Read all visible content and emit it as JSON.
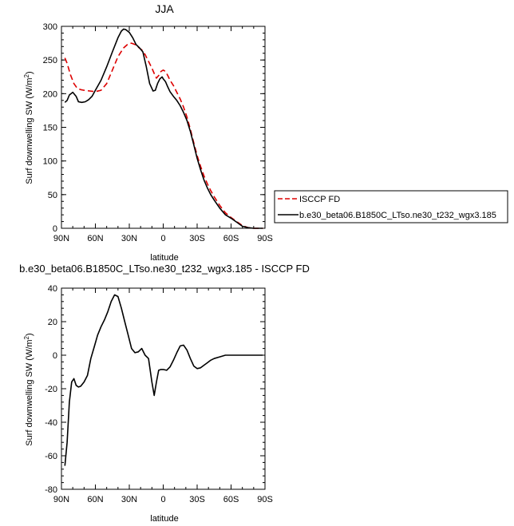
{
  "chart_data": [
    {
      "type": "line",
      "title": "JJA",
      "xlabel": "latitude",
      "ylabel": "Surf downwelling SW (W/m",
      "ylabel_sup": "2",
      "ylabel_end": ")",
      "xlim": [
        90,
        -90
      ],
      "ylim": [
        0,
        300
      ],
      "x_ticks": [
        90,
        60,
        30,
        0,
        -30,
        -60,
        -90
      ],
      "x_tick_labels": [
        "90N",
        "60N",
        "30N",
        "0",
        "30S",
        "60S",
        "90S"
      ],
      "y_ticks": [
        0,
        50,
        100,
        150,
        200,
        250,
        300
      ],
      "y_tick_labels": [
        "0",
        "50",
        "100",
        "150",
        "200",
        "250",
        "300"
      ],
      "legend_position": "right",
      "series": [
        {
          "name": "ISCCP FD",
          "color": "#dd0000",
          "dashed": true,
          "x": [
            87,
            85,
            82,
            79,
            76,
            73,
            70,
            65,
            60,
            55,
            50,
            45,
            40,
            35,
            31,
            28,
            25,
            22,
            19,
            16,
            13,
            10,
            8,
            6,
            4,
            2,
            0,
            -2,
            -4,
            -6,
            -9,
            -12,
            -15,
            -18,
            -21,
            -24,
            -27,
            -30,
            -33,
            -36,
            -39,
            -42,
            -45,
            -50,
            -55,
            -60,
            -65,
            -70,
            -75,
            -80,
            -85,
            -88
          ],
          "y": [
            253,
            245,
            228,
            215,
            208,
            206,
            205,
            204,
            203,
            205,
            215,
            235,
            255,
            268,
            274,
            275,
            273,
            269,
            265,
            258,
            248,
            238,
            230,
            223,
            227,
            233,
            235,
            233,
            227,
            220,
            212,
            202,
            192,
            180,
            165,
            147,
            127,
            108,
            92,
            78,
            66,
            56,
            47,
            34,
            23,
            16,
            10,
            4,
            1,
            0,
            0,
            0
          ]
        },
        {
          "name": "b.e30_beta06.B1850C_LTso.ne30_t232_wgx3.185",
          "color": "#000000",
          "dashed": false,
          "x": [
            87,
            85,
            83,
            80,
            77,
            75,
            72,
            69,
            66,
            63,
            60,
            55,
            50,
            45,
            40,
            37,
            35,
            33,
            30,
            27,
            24,
            21,
            18,
            15,
            12,
            9,
            7,
            5,
            3,
            1,
            0,
            -2,
            -4,
            -6,
            -9,
            -12,
            -15,
            -18,
            -21,
            -24,
            -27,
            -30,
            -33,
            -36,
            -39,
            -42,
            -45,
            -50,
            -55,
            -60,
            -65,
            -70,
            -75,
            -80,
            -85,
            -88
          ],
          "y": [
            187,
            190,
            198,
            202,
            196,
            188,
            187,
            188,
            191,
            196,
            205,
            220,
            240,
            262,
            283,
            293,
            296,
            295,
            291,
            283,
            273,
            268,
            262,
            240,
            215,
            204,
            205,
            215,
            222,
            225,
            222,
            218,
            210,
            203,
            196,
            190,
            182,
            172,
            160,
            144,
            124,
            104,
            87,
            72,
            60,
            50,
            42,
            30,
            20,
            15,
            9,
            3,
            1,
            0,
            0,
            0
          ]
        }
      ]
    },
    {
      "type": "line",
      "title": "b.e30_beta06.B1850C_LTso.ne30_t232_wgx3.185 - ISCCP FD",
      "xlabel": "latitude",
      "ylabel": "Surf downwelling SW (W/m",
      "ylabel_sup": "2",
      "ylabel_end": ")",
      "xlim": [
        90,
        -90
      ],
      "ylim": [
        -80,
        40
      ],
      "x_ticks": [
        90,
        60,
        30,
        0,
        -30,
        -60,
        -90
      ],
      "x_tick_labels": [
        "90N",
        "60N",
        "30N",
        "0",
        "30S",
        "60S",
        "90S"
      ],
      "y_ticks": [
        -80,
        -60,
        -40,
        -20,
        0,
        20,
        40
      ],
      "y_tick_labels": [
        "-80",
        "-60",
        "-40",
        "-20",
        "0",
        "20",
        "40"
      ],
      "series": [
        {
          "color": "#000000",
          "dashed": false,
          "x": [
            87,
            85,
            83,
            81,
            79,
            77,
            75,
            73,
            70,
            67,
            64,
            61,
            58,
            55,
            52,
            49,
            46,
            43,
            40,
            37,
            34,
            31,
            28,
            25,
            22,
            19,
            16,
            13,
            10,
            8,
            6,
            4,
            2,
            0,
            -3,
            -6,
            -9,
            -12,
            -15,
            -18,
            -21,
            -24,
            -27,
            -30,
            -33,
            -36,
            -39,
            -42,
            -45,
            -50,
            -55,
            -60,
            -65,
            -70,
            -75,
            -80,
            -85,
            -88
          ],
          "y": [
            -66,
            -52,
            -28,
            -16,
            -14,
            -18,
            -19,
            -18.5,
            -16,
            -12,
            -2,
            5,
            12,
            17,
            21,
            26,
            32,
            36,
            35,
            28,
            20,
            12,
            4,
            1.5,
            2,
            4,
            0,
            -2,
            -16,
            -24,
            -16,
            -9,
            -8.5,
            -8.5,
            -9,
            -7,
            -3,
            1.5,
            5.5,
            6,
            3,
            -2,
            -6.5,
            -8,
            -7.5,
            -6,
            -4.5,
            -3,
            -2,
            -1,
            0,
            0,
            0,
            0,
            0,
            0,
            0,
            0
          ]
        }
      ]
    }
  ]
}
